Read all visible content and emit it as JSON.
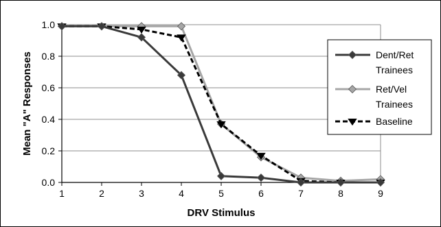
{
  "chart_data": {
    "type": "line",
    "xlabel": "DRV Stimulus",
    "ylabel": "Mean \"A\" Responses",
    "x": [
      1,
      2,
      3,
      4,
      5,
      6,
      7,
      8,
      9
    ],
    "xlim": [
      1,
      9
    ],
    "ylim": [
      0,
      1
    ],
    "yticks": [
      "0.0",
      "0.2",
      "0.4",
      "0.6",
      "0.8",
      "1.0"
    ],
    "xticks": [
      "1",
      "2",
      "3",
      "4",
      "5",
      "6",
      "7",
      "8",
      "9"
    ],
    "grid": "horizontal",
    "legend_position": "right",
    "series": [
      {
        "name": "Dent/Ret Trainees",
        "label_lines": [
          "Dent/Ret",
          "Trainees"
        ],
        "values": [
          0.99,
          0.99,
          0.92,
          0.68,
          0.04,
          0.03,
          0.0,
          0.0,
          0.0
        ],
        "color": "#3a3a3a",
        "style": "solid",
        "marker": "diamond"
      },
      {
        "name": "Ret/Vel Trainees",
        "label_lines": [
          "Ret/Vel",
          "Trainees"
        ],
        "values": [
          0.99,
          0.99,
          0.99,
          0.99,
          0.37,
          0.16,
          0.03,
          0.01,
          0.02
        ],
        "color": "#a6a6a6",
        "style": "solid",
        "marker": "diamond"
      },
      {
        "name": "Baseline",
        "label_lines": [
          "Baseline"
        ],
        "values": [
          0.99,
          0.99,
          0.97,
          0.92,
          0.37,
          0.17,
          0.01,
          0.0,
          0.0
        ],
        "color": "#000000",
        "style": "dashed",
        "marker": "triangle"
      }
    ]
  }
}
